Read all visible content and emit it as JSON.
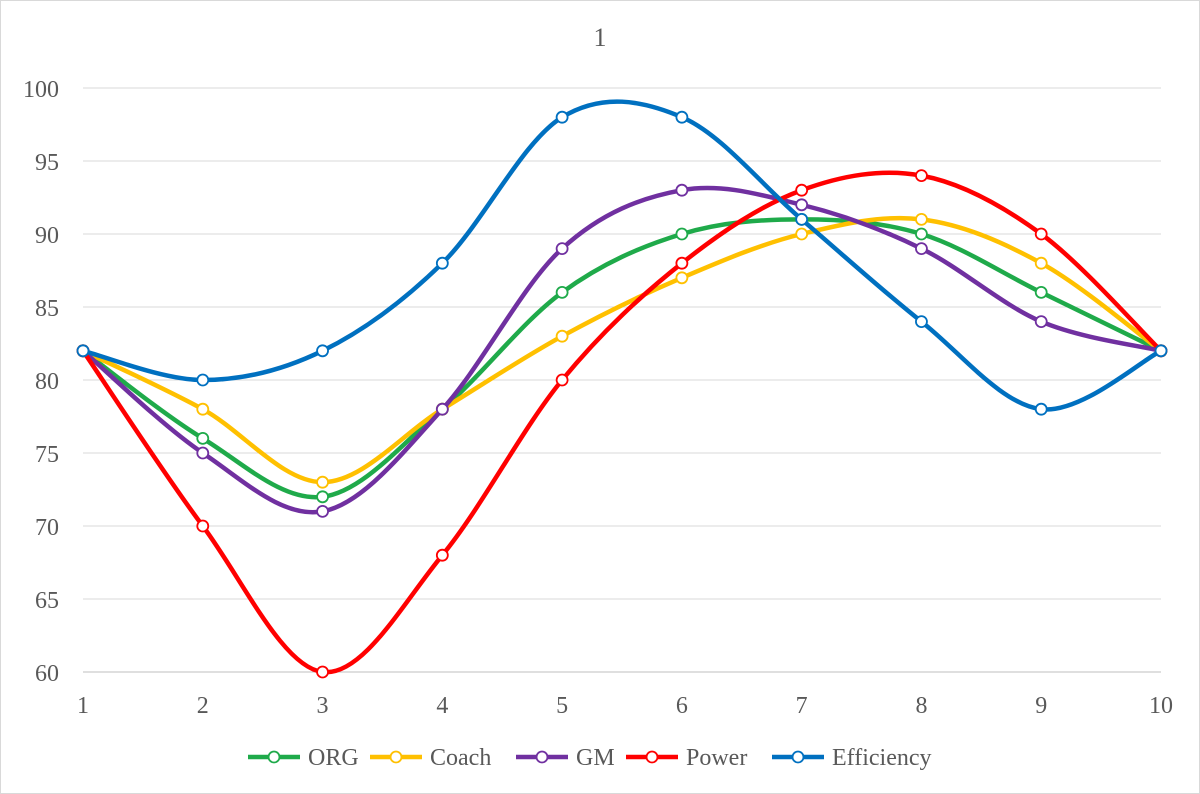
{
  "chart_data": {
    "type": "line",
    "title": "1",
    "xlabel": "",
    "ylabel": "",
    "x": [
      1,
      2,
      3,
      4,
      5,
      6,
      7,
      8,
      9,
      10
    ],
    "ylim": [
      60,
      100
    ],
    "y_ticks": [
      60,
      65,
      70,
      75,
      80,
      85,
      90,
      95,
      100
    ],
    "smooth": true,
    "markers": "open-circle",
    "grid": "horizontal",
    "legend": "bottom-center",
    "series": [
      {
        "name": "ORG",
        "color": "#1faa4a",
        "values": [
          82,
          76,
          72,
          78,
          86,
          90,
          91,
          90,
          86,
          82
        ]
      },
      {
        "name": "Coach",
        "color": "#ffc000",
        "values": [
          82,
          78,
          73,
          78,
          83,
          87,
          90,
          91,
          88,
          82
        ]
      },
      {
        "name": "GM",
        "color": "#7030a0",
        "values": [
          82,
          75,
          71,
          78,
          89,
          93,
          92,
          89,
          84,
          82
        ]
      },
      {
        "name": "Power",
        "color": "#ff0000",
        "values": [
          82,
          70,
          60,
          68,
          80,
          88,
          93,
          94,
          90,
          82
        ]
      },
      {
        "name": "Efficiency",
        "color": "#0070c0",
        "values": [
          82,
          80,
          82,
          88,
          98,
          98,
          91,
          84,
          78,
          82
        ]
      }
    ]
  }
}
